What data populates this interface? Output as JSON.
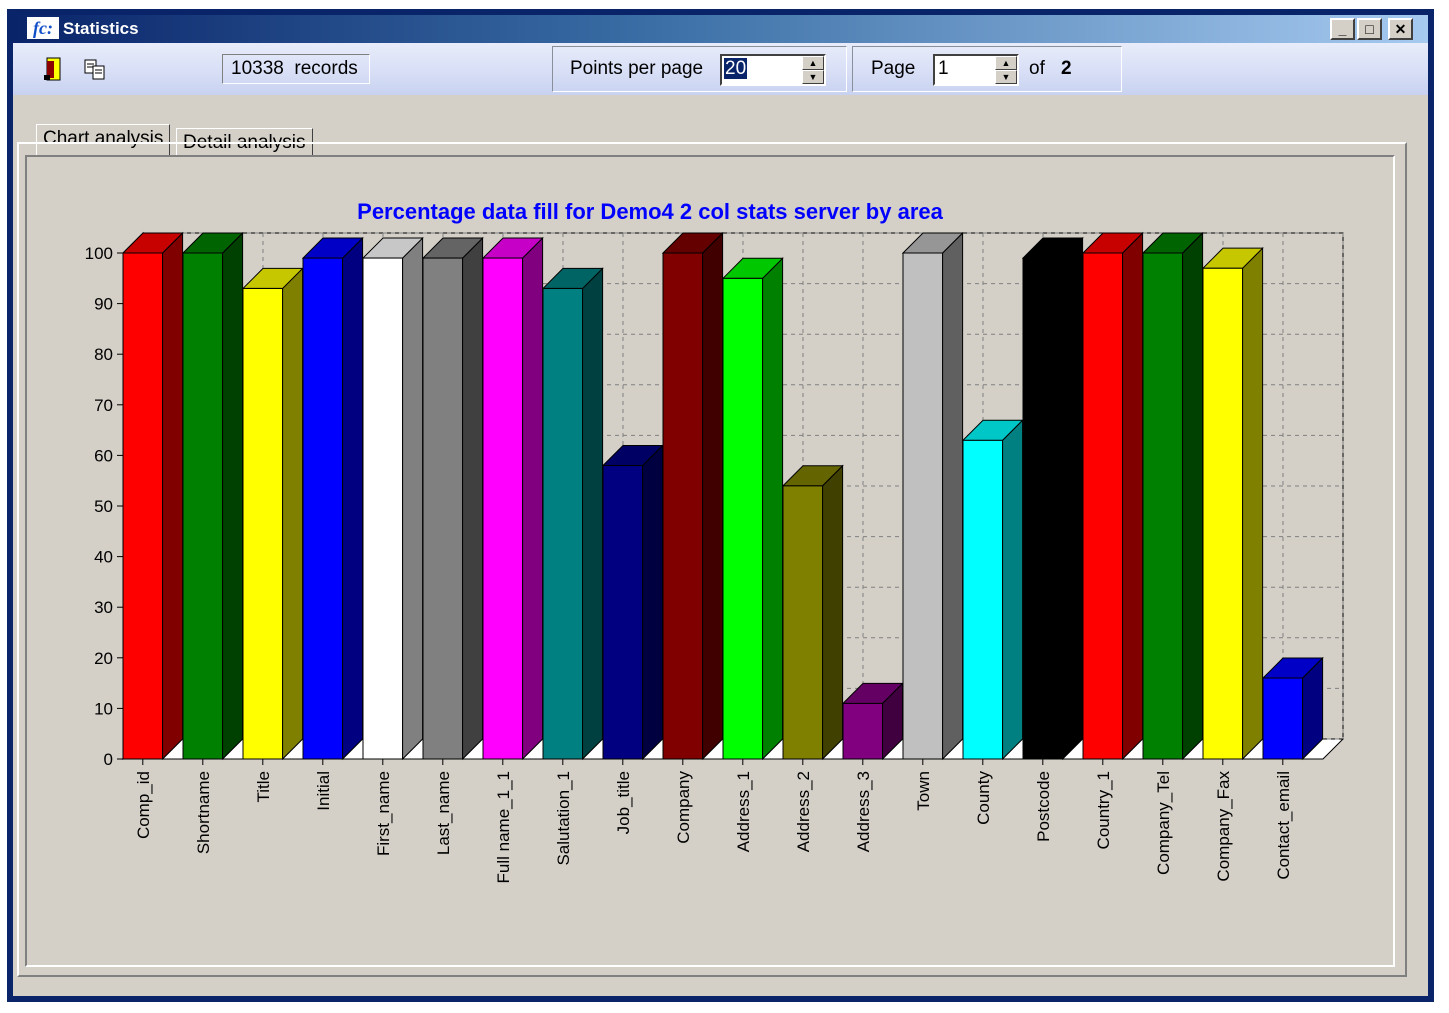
{
  "window": {
    "title": "Statistics",
    "logo": "fc:"
  },
  "window_buttons": {
    "minimize": "_",
    "maximize": "□",
    "close": "✕"
  },
  "toolbar": {
    "exit_icon": "exit-door-icon",
    "copy_icon": "copy-icon",
    "records_count": "10338",
    "records_label": "records",
    "points_per_page_label": "Points per page",
    "points_per_page_value": "20",
    "page_label": "Page",
    "page_value": "1",
    "of_label": "of",
    "total_pages": "2"
  },
  "tabs": [
    {
      "label": "Chart analysis",
      "active": true
    },
    {
      "label": "Detail analysis",
      "active": false
    }
  ],
  "chart_data": {
    "type": "bar",
    "title": "Percentage data fill for Demo4 2 col stats server by area",
    "title_color": "#0000ff",
    "ylim": [
      0,
      100
    ],
    "yticks": [
      0,
      10,
      20,
      30,
      40,
      50,
      60,
      70,
      80,
      90,
      100
    ],
    "grid": true,
    "three_d": true,
    "categories": [
      "Comp_id",
      "Shortname",
      "Title",
      "Initial",
      "First_name",
      "Last_name",
      "Full name_1_1",
      "Salutation_1",
      "Job_title",
      "Company",
      "Address_1",
      "Address_2",
      "Address_3",
      "Town",
      "County",
      "Postcode",
      "Country_1",
      "Company_Tel",
      "Company_Fax",
      "Contact_email"
    ],
    "values": [
      100,
      100,
      93,
      99,
      99,
      99,
      99,
      93,
      58,
      100,
      95,
      54,
      11,
      100,
      63,
      99,
      100,
      100,
      97,
      16
    ],
    "colors": [
      "#ff0000",
      "#008000",
      "#ffff00",
      "#0000ff",
      "#ffffff",
      "#808080",
      "#ff00ff",
      "#008080",
      "#000080",
      "#800000",
      "#00ff00",
      "#808000",
      "#800080",
      "#c0c0c0",
      "#00ffff",
      "#000000",
      "#ff0000",
      "#008000",
      "#ffff00",
      "#0000ff"
    ]
  }
}
